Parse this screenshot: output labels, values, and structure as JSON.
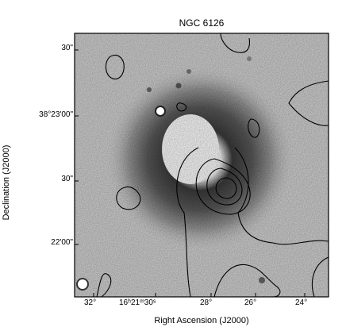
{
  "figure": {
    "title": "NGC 6126",
    "xlabel": "Right Ascension (J2000)",
    "ylabel": "Declination (J2000)",
    "y_ticks": [
      "30\"",
      "38°23'00\"",
      "30\"",
      "22'00\""
    ],
    "x_ticks": [
      "32°",
      "16ʰ21ᵐ30ˢ",
      "28°",
      "26°",
      "24°"
    ]
  }
}
